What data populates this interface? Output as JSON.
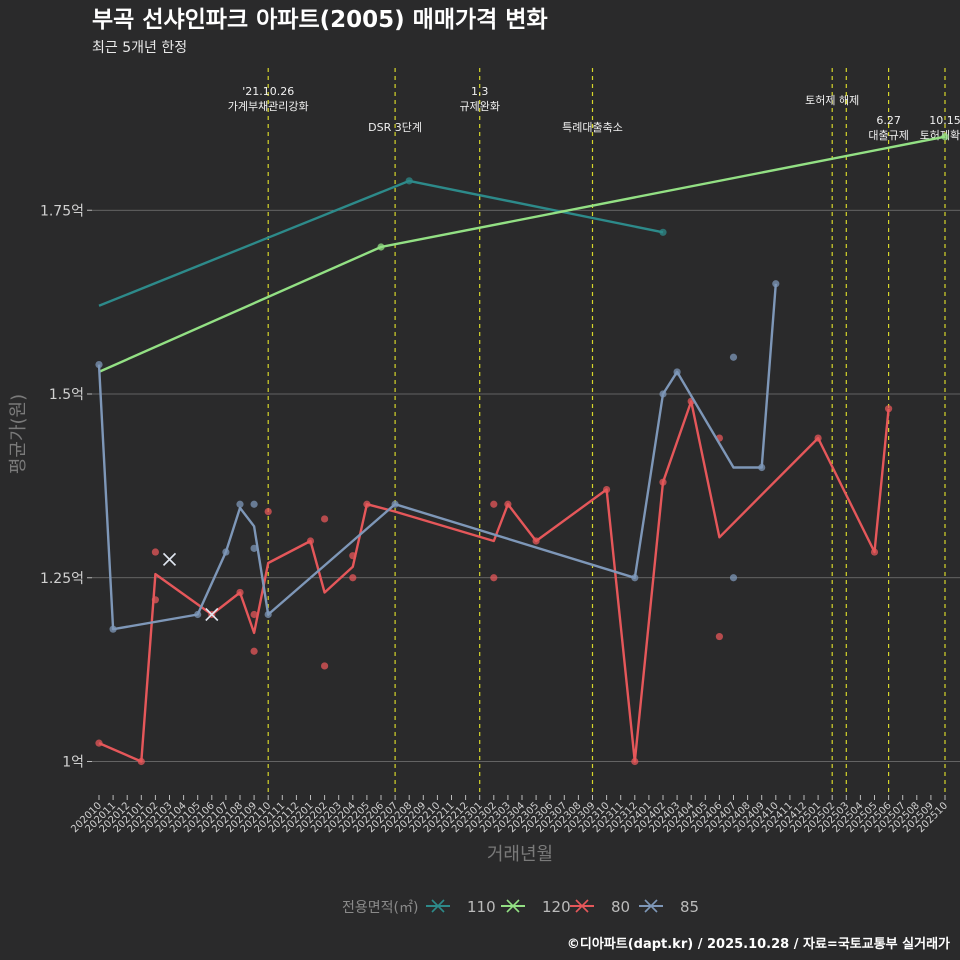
{
  "chart_data": {
    "type": "line",
    "title": "부곡 선샤인파크 아파트(2005) 매매가격 변화",
    "subtitle": "최근 5개년 한정",
    "xlabel": "거래년월",
    "ylabel": "평균가(원)",
    "ylim": [
      0.97,
      1.97
    ],
    "yticks": [
      {
        "value": 1.0,
        "label": "1억"
      },
      {
        "value": 1.25,
        "label": "1.25억"
      },
      {
        "value": 1.5,
        "label": "1.5억"
      },
      {
        "value": 1.75,
        "label": "1.75억"
      }
    ],
    "months": [
      "202010",
      "202011",
      "202012",
      "202101",
      "202102",
      "202103",
      "202104",
      "202105",
      "202106",
      "202107",
      "202108",
      "202109",
      "202110",
      "202111",
      "202112",
      "202201",
      "202202",
      "202203",
      "202204",
      "202205",
      "202206",
      "202207",
      "202208",
      "202209",
      "202210",
      "202211",
      "202212",
      "202301",
      "202302",
      "202303",
      "202304",
      "202305",
      "202306",
      "202307",
      "202308",
      "202309",
      "202310",
      "202311",
      "202312",
      "202401",
      "202402",
      "202403",
      "202404",
      "202405",
      "202406",
      "202407",
      "202408",
      "202409",
      "202410",
      "202411",
      "202412",
      "202501",
      "202502",
      "202503",
      "202504",
      "202505",
      "202506",
      "202507",
      "202508",
      "202509",
      "202510"
    ],
    "events": [
      {
        "month": "202110",
        "label": "'21.10.26\n가계부채관리강화",
        "row": 0
      },
      {
        "month": "202207",
        "label": "DSR 3단계",
        "row": 1
      },
      {
        "month": "202301",
        "label": "1.3\n규제완화",
        "row": 0
      },
      {
        "month": "202309",
        "label": "특례대출축소",
        "row": 1
      },
      {
        "month": "202502",
        "label": "토허제 해제",
        "row": 0
      },
      {
        "month": "202503",
        "label": "",
        "row": 0
      },
      {
        "month": "202506",
        "label": "6.27\n대출규제",
        "row": 1
      },
      {
        "month": "202510",
        "label": "10.15\n토허제확대",
        "row": 1
      }
    ],
    "series": [
      {
        "name": "110",
        "color": "#2d8a8a",
        "line": [
          [
            "202010",
            1.62
          ],
          [
            "202208",
            1.79
          ],
          [
            "202402",
            1.72
          ]
        ],
        "points": [
          [
            "202208",
            1.79
          ],
          [
            "202402",
            1.72
          ]
        ],
        "crosses": []
      },
      {
        "name": "120",
        "color": "#93e084",
        "line": [
          [
            "202010",
            1.53
          ],
          [
            "202206",
            1.7
          ],
          [
            "202510",
            1.85
          ]
        ],
        "points": [
          [
            "202206",
            1.7
          ],
          [
            "202510",
            1.85
          ]
        ],
        "crosses": []
      },
      {
        "name": "80",
        "color": "#e5575a",
        "line": [
          [
            "202010",
            1.025
          ],
          [
            "202101",
            1.0
          ],
          [
            "202102",
            1.255
          ],
          [
            "202106",
            1.2
          ],
          [
            "202108",
            1.23
          ],
          [
            "202109",
            1.175
          ],
          [
            "202110",
            1.27
          ],
          [
            "202201",
            1.3
          ],
          [
            "202202",
            1.23
          ],
          [
            "202204",
            1.265
          ],
          [
            "202205",
            1.35
          ],
          [
            "202207",
            1.34
          ],
          [
            "202302",
            1.3
          ],
          [
            "202303",
            1.35
          ],
          [
            "202305",
            1.3
          ],
          [
            "202310",
            1.37
          ],
          [
            "202312",
            1.0
          ],
          [
            "202402",
            1.38
          ],
          [
            "202404",
            1.49
          ],
          [
            "202406",
            1.305
          ],
          [
            "202501",
            1.44
          ],
          [
            "202505",
            1.285
          ],
          [
            "202506",
            1.48
          ]
        ],
        "points": [
          [
            "202010",
            1.025
          ],
          [
            "202101",
            1.0
          ],
          [
            "202102",
            1.22
          ],
          [
            "202102",
            1.285
          ],
          [
            "202106",
            1.2
          ],
          [
            "202108",
            1.23
          ],
          [
            "202109",
            1.15
          ],
          [
            "202109",
            1.2
          ],
          [
            "202110",
            1.34
          ],
          [
            "202201",
            1.3
          ],
          [
            "202202",
            1.13
          ],
          [
            "202202",
            1.33
          ],
          [
            "202204",
            1.25
          ],
          [
            "202204",
            1.28
          ],
          [
            "202205",
            1.35
          ],
          [
            "202302",
            1.25
          ],
          [
            "202302",
            1.35
          ],
          [
            "202303",
            1.35
          ],
          [
            "202305",
            1.3
          ],
          [
            "202310",
            1.37
          ],
          [
            "202312",
            1.0
          ],
          [
            "202402",
            1.38
          ],
          [
            "202404",
            1.49
          ],
          [
            "202406",
            1.17
          ],
          [
            "202406",
            1.44
          ],
          [
            "202501",
            1.44
          ],
          [
            "202505",
            1.285
          ],
          [
            "202506",
            1.48
          ]
        ],
        "crosses": []
      },
      {
        "name": "85",
        "color": "#7e97b8",
        "line": [
          [
            "202010",
            1.54
          ],
          [
            "202011",
            1.18
          ],
          [
            "202105",
            1.2
          ],
          [
            "202107",
            1.285
          ],
          [
            "202108",
            1.345
          ],
          [
            "202109",
            1.32
          ],
          [
            "202110",
            1.2
          ],
          [
            "202207",
            1.35
          ],
          [
            "202312",
            1.25
          ],
          [
            "202402",
            1.5
          ],
          [
            "202403",
            1.53
          ],
          [
            "202407",
            1.4
          ],
          [
            "202409",
            1.4
          ],
          [
            "202410",
            1.65
          ]
        ],
        "points": [
          [
            "202010",
            1.54
          ],
          [
            "202011",
            1.18
          ],
          [
            "202105",
            1.2
          ],
          [
            "202107",
            1.285
          ],
          [
            "202108",
            1.35
          ],
          [
            "202109",
            1.35
          ],
          [
            "202109",
            1.29
          ],
          [
            "202110",
            1.2
          ],
          [
            "202207",
            1.35
          ],
          [
            "202312",
            1.25
          ],
          [
            "202402",
            1.5
          ],
          [
            "202403",
            1.53
          ],
          [
            "202407",
            1.55
          ],
          [
            "202407",
            1.25
          ],
          [
            "202409",
            1.4
          ],
          [
            "202410",
            1.65
          ]
        ],
        "crosses": [
          [
            "202103",
            1.275
          ],
          [
            "202106",
            1.2
          ]
        ]
      }
    ],
    "legend": {
      "title": "전용면적(㎡)",
      "position": "bottom"
    },
    "caption": "©디아파트(dapt.kr) / 2025.10.28 / 자료=국토교통부 실거래가"
  }
}
